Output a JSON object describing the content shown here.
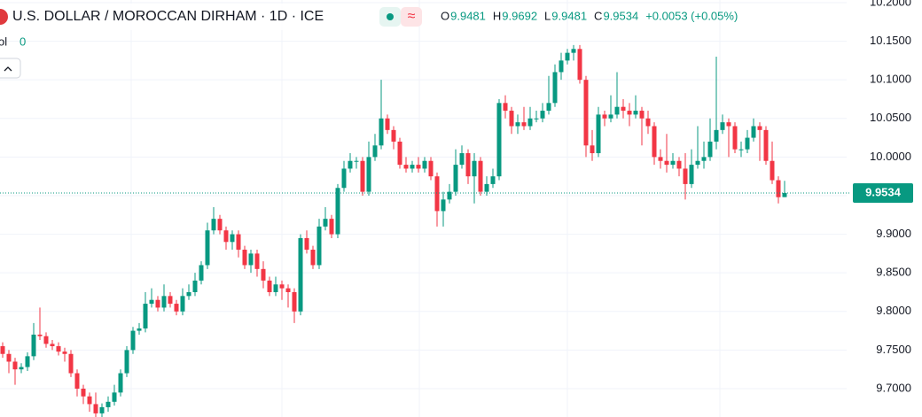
{
  "chart_data": {
    "type": "candlestick",
    "title": "U.S. DOLLAR / MOROCCAN DIRHAM · 1D · ICE",
    "header_icon": "≈",
    "ohlc_labels": [
      "O",
      "H",
      "L",
      "C"
    ],
    "change": "+0.0053 (+0.05%)",
    "volume_label": "ol",
    "volume_value": "0",
    "up_color": "#089981",
    "down_color": "#f23645",
    "grid": true,
    "ylim": [
      9.6633,
      10.2034
    ],
    "yticks": [
      {
        "value": 10.2,
        "label": "10.2000"
      },
      {
        "value": 10.15,
        "label": "10.1500"
      },
      {
        "value": 10.1,
        "label": "10.1000"
      },
      {
        "value": 10.05,
        "label": "10.0500"
      },
      {
        "value": 10.0,
        "label": "10.0000"
      },
      {
        "value": 9.95,
        "label": "9.9500"
      },
      {
        "value": 9.9,
        "label": "9.9000"
      },
      {
        "value": 9.85,
        "label": "9.8500"
      },
      {
        "value": 9.8,
        "label": "9.8000"
      },
      {
        "value": 9.75,
        "label": "9.7500"
      },
      {
        "value": 9.7,
        "label": "9.7000"
      }
    ],
    "open": [
      9.755,
      9.745,
      9.735,
      9.725,
      9.728,
      9.742,
      9.77,
      9.768,
      9.758,
      9.755,
      9.748,
      9.745,
      9.72,
      9.7,
      9.69,
      9.68,
      9.668,
      9.676,
      9.683,
      9.695,
      9.72,
      9.75,
      9.775,
      9.778,
      9.81,
      9.815,
      9.805,
      9.82,
      9.81,
      9.8,
      9.82,
      9.825,
      9.84,
      9.86,
      9.905,
      9.92,
      9.905,
      9.89,
      9.9,
      9.88,
      9.86,
      9.875,
      9.855,
      9.84,
      9.825,
      9.835,
      9.83,
      9.825,
      9.8,
      9.895,
      9.88,
      9.86,
      9.91,
      9.92,
      9.9,
      9.96,
      9.985,
      9.995,
      9.995,
      9.955,
      10.0,
      10.015,
      10.05,
      10.035,
      10.02,
      9.99,
      9.985,
      9.99,
      9.985,
      9.995,
      9.975,
      9.93,
      9.945,
      9.955,
      9.99,
      10.005,
      9.975,
      9.995,
      9.955,
      9.965,
      9.975,
      10.07,
      10.06,
      10.04,
      10.045,
      10.04,
      10.05,
      10.05,
      10.06,
      10.07,
      10.11,
      10.125,
      10.135,
      10.14,
      10.1,
      10.015,
      10.005,
      10.055,
      10.05,
      10.055,
      10.065,
      10.06,
      10.055,
      10.06,
      10.05,
      10.04,
      10.0,
      9.995,
      9.99,
      9.995,
      9.985,
      9.965,
      9.99,
      9.995,
      10.0,
      10.02,
      10.035,
      10.045,
      10.04,
      10.01,
      10.01,
      10.025,
      10.04,
      10.035,
      9.995,
      9.97,
      9.9481
    ],
    "high": [
      9.76,
      9.75,
      9.74,
      9.733,
      9.747,
      9.785,
      9.805,
      9.773,
      9.763,
      9.76,
      9.753,
      9.75,
      9.725,
      9.705,
      9.695,
      9.695,
      9.681,
      9.69,
      9.705,
      9.725,
      9.755,
      9.78,
      9.785,
      9.825,
      9.83,
      9.82,
      9.835,
      9.825,
      9.815,
      9.83,
      9.835,
      9.85,
      9.865,
      9.915,
      9.935,
      9.925,
      9.91,
      9.905,
      9.905,
      9.885,
      9.88,
      9.88,
      9.865,
      9.845,
      9.845,
      9.84,
      9.835,
      9.83,
      9.9,
      9.905,
      9.885,
      9.92,
      9.935,
      9.925,
      9.965,
      9.995,
      10.005,
      10.0,
      10.0,
      10.02,
      10.03,
      10.1,
      10.055,
      10.04,
      10.025,
      10.0,
      9.995,
      10.0,
      10.0,
      10.0,
      9.98,
      9.955,
      9.965,
      10.01,
      10.015,
      10.01,
      10.005,
      10.0,
      9.975,
      9.985,
      10.075,
      10.08,
      10.065,
      10.055,
      10.065,
      10.065,
      10.06,
      10.07,
      10.105,
      10.12,
      10.135,
      10.14,
      10.145,
      10.145,
      10.105,
      10.035,
      10.065,
      10.06,
      10.08,
      10.11,
      10.075,
      10.07,
      10.08,
      10.065,
      10.06,
      10.045,
      10.01,
      10.03,
      10.005,
      10.0,
      10.005,
      10.01,
      10.04,
      10.02,
      10.05,
      10.13,
      10.055,
      10.05,
      10.045,
      10.02,
      10.035,
      10.05,
      10.045,
      10.04,
      10.02,
      9.975,
      9.9692
    ],
    "low": [
      9.74,
      9.72,
      9.705,
      9.72,
      9.723,
      9.737,
      9.763,
      9.753,
      9.75,
      9.743,
      9.735,
      9.715,
      9.69,
      9.68,
      9.67,
      9.663,
      9.663,
      9.67,
      9.678,
      9.69,
      9.715,
      9.745,
      9.77,
      9.773,
      9.805,
      9.8,
      9.8,
      9.805,
      9.795,
      9.795,
      9.815,
      9.82,
      9.835,
      9.855,
      9.9,
      9.9,
      9.88,
      9.88,
      9.87,
      9.855,
      9.85,
      9.845,
      9.83,
      9.82,
      9.82,
      9.815,
      9.805,
      9.785,
      9.795,
      9.875,
      9.855,
      9.855,
      9.905,
      9.895,
      9.895,
      9.955,
      9.98,
      9.985,
      9.95,
      9.95,
      9.995,
      10.01,
      10.03,
      10.01,
      9.985,
      9.98,
      9.98,
      9.98,
      9.98,
      9.97,
      9.91,
      9.91,
      9.94,
      9.95,
      9.985,
      9.965,
      9.94,
      9.95,
      9.95,
      9.96,
      9.97,
      10.05,
      10.03,
      10.03,
      10.035,
      10.035,
      10.045,
      10.045,
      10.055,
      10.065,
      10.1,
      10.12,
      10.125,
      10.095,
      10.0,
      9.995,
      10.0,
      10.04,
      10.045,
      10.05,
      10.05,
      10.04,
      10.05,
      10.015,
      10.03,
      9.99,
      9.985,
      9.98,
      9.985,
      9.975,
      9.945,
      9.96,
      9.985,
      9.985,
      9.995,
      10.01,
      10.03,
      10.0,
      10.005,
      10.0,
      10.005,
      10.02,
      9.995,
      9.99,
      9.965,
      9.94,
      9.9481
    ],
    "close": [
      9.745,
      9.735,
      9.725,
      9.728,
      9.742,
      9.77,
      9.768,
      9.758,
      9.755,
      9.748,
      9.745,
      9.72,
      9.7,
      9.69,
      9.68,
      9.668,
      9.676,
      9.683,
      9.695,
      9.72,
      9.75,
      9.775,
      9.778,
      9.81,
      9.815,
      9.805,
      9.82,
      9.81,
      9.8,
      9.82,
      9.825,
      9.84,
      9.86,
      9.905,
      9.92,
      9.905,
      9.89,
      9.9,
      9.88,
      9.86,
      9.875,
      9.855,
      9.84,
      9.825,
      9.835,
      9.83,
      9.825,
      9.8,
      9.895,
      9.88,
      9.86,
      9.91,
      9.92,
      9.9,
      9.96,
      9.985,
      9.995,
      9.995,
      9.955,
      10.0,
      10.015,
      10.05,
      10.035,
      10.02,
      9.99,
      9.985,
      9.99,
      9.985,
      9.995,
      9.975,
      9.93,
      9.945,
      9.955,
      9.99,
      10.005,
      9.975,
      9.995,
      9.955,
      9.965,
      9.975,
      10.07,
      10.06,
      10.04,
      10.045,
      10.04,
      10.05,
      10.05,
      10.06,
      10.07,
      10.11,
      10.125,
      10.135,
      10.14,
      10.1,
      10.015,
      10.005,
      10.055,
      10.05,
      10.055,
      10.065,
      10.06,
      10.055,
      10.06,
      10.05,
      10.04,
      10.0,
      9.995,
      9.99,
      9.995,
      9.985,
      9.965,
      9.99,
      9.995,
      10.0,
      10.02,
      10.035,
      10.045,
      10.04,
      10.01,
      10.01,
      10.025,
      10.04,
      10.035,
      9.995,
      9.97,
      9.948,
      9.9534
    ]
  }
}
